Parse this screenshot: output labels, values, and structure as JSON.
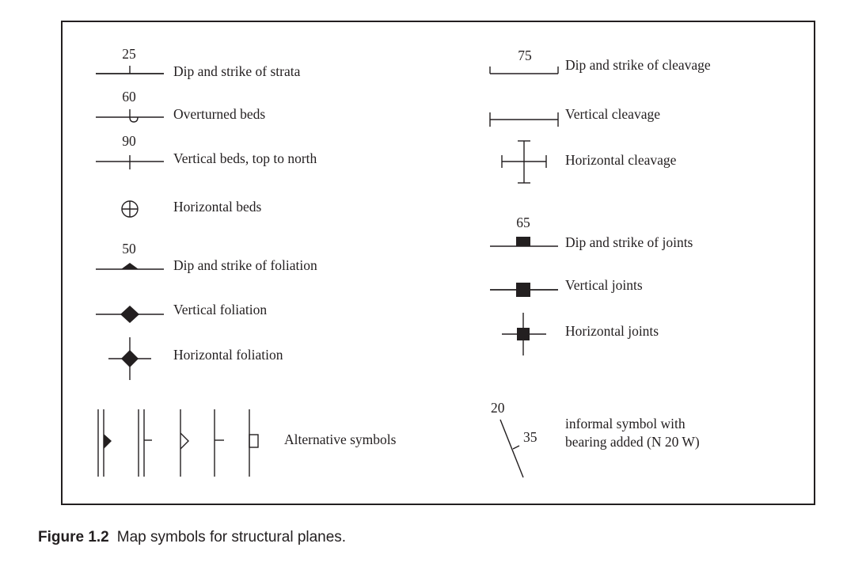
{
  "left_column": [
    {
      "label": "Dip and strike of strata",
      "value": "25"
    },
    {
      "label": "Overturned beds",
      "value": "60"
    },
    {
      "label": "Vertical beds, top to north",
      "value": "90"
    },
    {
      "label": "Horizontal beds"
    },
    {
      "label": "Dip and strike of foliation",
      "value": "50"
    },
    {
      "label": "Vertical foliation"
    },
    {
      "label": "Horizontal foliation"
    },
    {
      "label": "Alternative symbols"
    }
  ],
  "right_column": [
    {
      "label": "Dip and strike of cleavage",
      "value": "75"
    },
    {
      "label": "Vertical cleavage"
    },
    {
      "label": "Horizontal cleavage"
    },
    {
      "label": "Dip and strike of joints",
      "value": "65"
    },
    {
      "label": "Vertical joints"
    },
    {
      "label": "Horizontal joints"
    },
    {
      "label_line1": "informal symbol with",
      "label_line2": "bearing added (N 20 W)",
      "bearing": "20",
      "dip": "35"
    }
  ],
  "caption": {
    "label": "Figure 1.2",
    "text": "Map symbols for structural planes."
  }
}
